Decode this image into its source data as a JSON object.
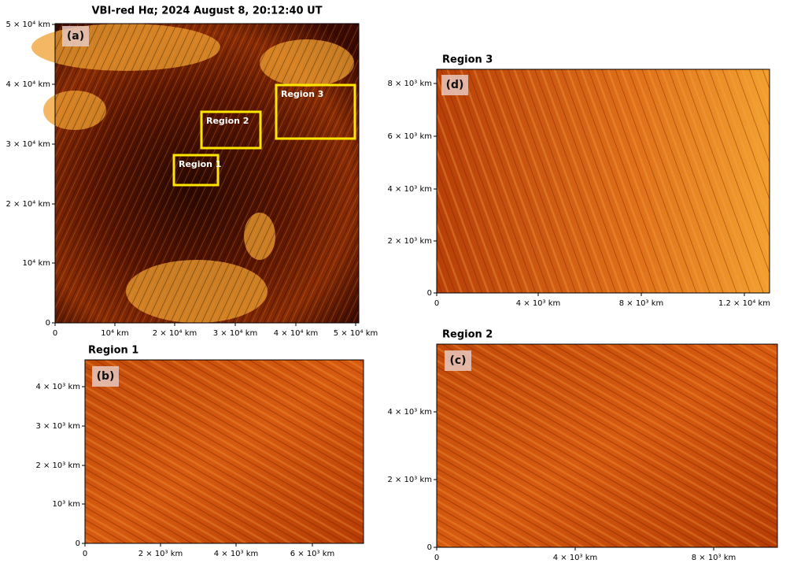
{
  "panels": [
    {
      "label": "(a)",
      "title": "VBI-red Hα; 2024 August 8, 20:12:40 UT",
      "x_ticks": [
        "0",
        "10⁴ km",
        "2 × 10⁴ km",
        "3 × 10⁴ km",
        "4 × 10⁴ km",
        "5 × 10⁴ km"
      ],
      "y_ticks": [
        "0",
        "10⁴ km",
        "2 × 10⁴ km",
        "3 × 10⁴ km",
        "4 × 10⁴ km",
        "5 × 10⁴ km"
      ],
      "regions": [
        "Region 1",
        "Region 2",
        "Region 3"
      ]
    },
    {
      "label": "(b)",
      "title": "Region 1",
      "x_ticks": [
        "0",
        "2 × 10³ km",
        "4 × 10³ km",
        "6 × 10³ km"
      ],
      "y_ticks": [
        "0",
        "10³ km",
        "2 × 10³ km",
        "3 × 10³ km",
        "4 × 10³ km"
      ]
    },
    {
      "label": "(c)",
      "title": "Region 2",
      "x_ticks": [
        "0",
        "4 × 10³ km",
        "8 × 10³ km"
      ],
      "y_ticks": [
        "0",
        "2 × 10³ km",
        "4 × 10³ km"
      ]
    },
    {
      "label": "(d)",
      "title": "Region 3",
      "x_ticks": [
        "0",
        "4 × 10³ km",
        "8 × 10³ km",
        "1.2 × 10⁴ km"
      ],
      "y_ticks": [
        "0",
        "2 × 10³ km",
        "4 × 10³ km",
        "6 × 10³ km",
        "8 × 10³ km"
      ]
    }
  ]
}
